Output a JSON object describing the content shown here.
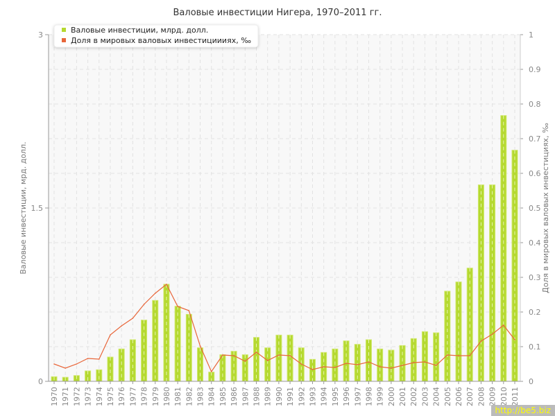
{
  "chart_data": {
    "type": "bar+line",
    "title": "Валовые инвестиции Нигера, 1970–2011 гг.",
    "ylabel": "Валовые инвестиции, мрд. долл.",
    "y2label": "Доля в мировых валовых инвестициях, ‰",
    "ylim": [
      0,
      3
    ],
    "y2lim": [
      0,
      1
    ],
    "yticks": [
      "0",
      "1.5",
      "3"
    ],
    "y2ticks": [
      "0",
      "0.1",
      "0.2",
      "0.3",
      "0.4",
      "0.5",
      "0.6",
      "0.7",
      "0.8",
      "0.9",
      "1"
    ],
    "grid": true,
    "legend_placement": "top-left",
    "categories": [
      "1970",
      "1971",
      "1972",
      "1973",
      "1974",
      "1975",
      "1976",
      "1977",
      "1978",
      "1979",
      "1980",
      "1981",
      "1982",
      "1983",
      "1984",
      "1985",
      "1986",
      "1987",
      "1988",
      "1989",
      "1990",
      "1991",
      "1992",
      "1993",
      "1994",
      "1995",
      "1996",
      "1997",
      "1998",
      "1999",
      "2000",
      "2001",
      "2002",
      "2003",
      "2004",
      "2005",
      "2006",
      "2007",
      "2008",
      "2009",
      "2010",
      "2011"
    ],
    "series": [
      {
        "name": "Валовые инвестиции, млрд. долл.",
        "type": "bar",
        "axis": "left",
        "color": "#b5d930",
        "values": [
          0.04,
          0.035,
          0.05,
          0.09,
          0.1,
          0.21,
          0.28,
          0.36,
          0.53,
          0.7,
          0.84,
          0.65,
          0.58,
          0.29,
          0.08,
          0.23,
          0.26,
          0.23,
          0.38,
          0.29,
          0.4,
          0.4,
          0.29,
          0.19,
          0.25,
          0.28,
          0.35,
          0.32,
          0.36,
          0.28,
          0.27,
          0.31,
          0.37,
          0.43,
          0.42,
          0.78,
          0.86,
          0.98,
          1.7,
          1.7,
          2.3,
          2.0
        ]
      },
      {
        "name": "Доля в мировых валовых инвестициииях, ‰",
        "type": "line",
        "axis": "right",
        "color": "#e8663a",
        "values": [
          0.05,
          0.038,
          0.05,
          0.066,
          0.064,
          0.134,
          0.16,
          0.182,
          0.222,
          0.254,
          0.28,
          0.216,
          0.204,
          0.102,
          0.028,
          0.076,
          0.074,
          0.058,
          0.084,
          0.06,
          0.076,
          0.074,
          0.05,
          0.034,
          0.042,
          0.04,
          0.052,
          0.048,
          0.056,
          0.042,
          0.038,
          0.046,
          0.054,
          0.056,
          0.046,
          0.076,
          0.074,
          0.074,
          0.116,
          0.136,
          0.162,
          0.12
        ]
      }
    ]
  },
  "watermark": "http://be5.biz"
}
